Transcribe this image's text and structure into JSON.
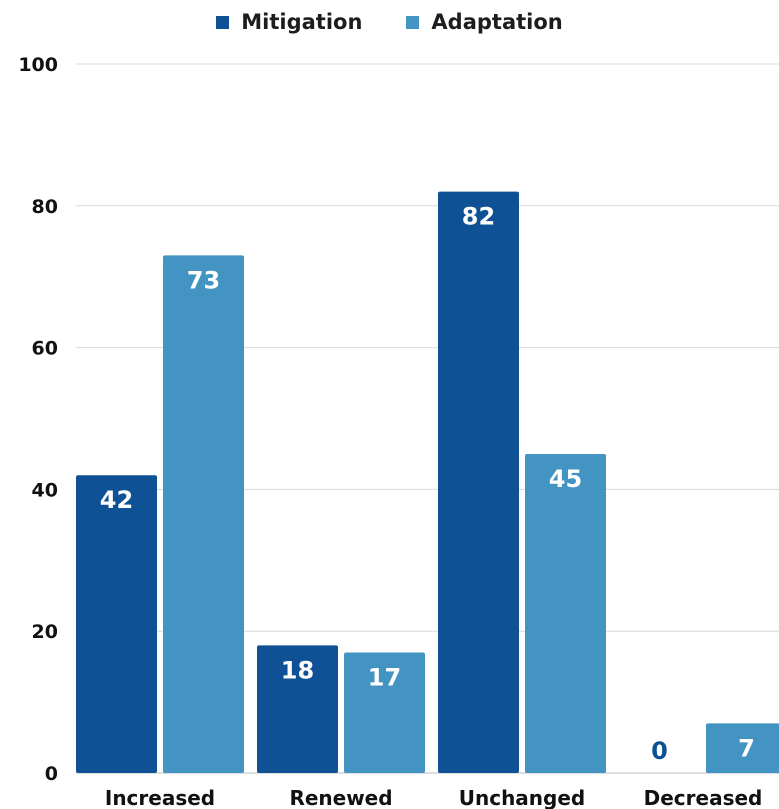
{
  "chart_data": {
    "type": "bar",
    "categories": [
      "Increased",
      "Renewed",
      "Unchanged",
      "Decreased"
    ],
    "series": [
      {
        "name": "Mitigation",
        "color": "#0f5195",
        "values": [
          42,
          18,
          82,
          0
        ]
      },
      {
        "name": "Adaptation",
        "color": "#4393c3",
        "values": [
          73,
          17,
          45,
          7
        ]
      }
    ],
    "ylim": [
      0,
      100
    ],
    "yticks": [
      0,
      20,
      40,
      60,
      80,
      100
    ],
    "grid": true,
    "legend_position": "top-center",
    "data_labels": true
  }
}
